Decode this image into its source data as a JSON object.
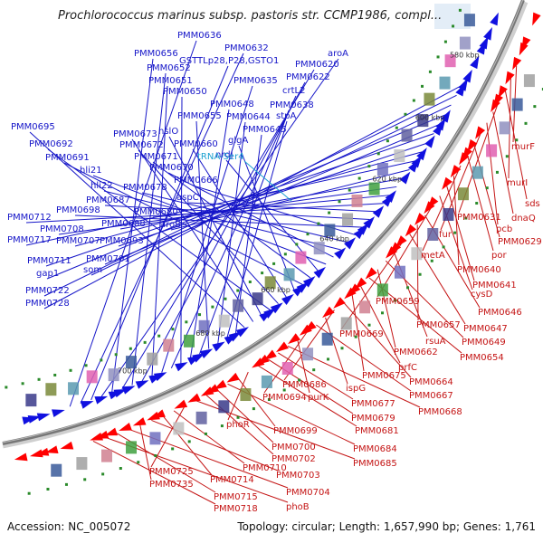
{
  "title": "Prochlorococcus marinus subsp. pastoris str. CCMP1986, compl...",
  "footer": {
    "accession": "Accession: NC_005072",
    "summary": "Topology: circular; Length: 1,657,990 bp; Genes: 1,761"
  },
  "colors": {
    "forward_strand": "#1010e0",
    "reverse_strand": "#ff0000",
    "blue_label": "#1515c8",
    "red_label": "#c41414",
    "trna_label": "#1aa0d0",
    "backbone": "#888888"
  },
  "kbp_markers": [
    "580 kbp",
    "600 kbp",
    "620 kbp",
    "640 kbp",
    "660 kbp",
    "680 kbp",
    "700 kbp"
  ],
  "labels_forward": [
    "PMM0636",
    "PMM0632",
    "GSTTLp28,P28,GSTO1",
    "aroA",
    "PMM0656",
    "PMM0620",
    "PMM0652",
    "PMM0622",
    "PMM0651",
    "PMM0635",
    "crtL2",
    "PMM0650",
    "PMM0648",
    "PMM0638",
    "PMM0655",
    "PMM0644",
    "stpA",
    "PMM0645",
    "PMM0695",
    "PMM0673",
    "hslO",
    "PMM0692",
    "PMM0672",
    "PMM0660",
    "glgA",
    "PMM0691",
    "PMM0671",
    "nrdJ",
    "hli21",
    "PMM0670",
    "hli22",
    "PMM0678",
    "PMM0666",
    "PMM0698",
    "PMM0687",
    "aspC",
    "PMM0712",
    "PMM0680",
    "PMM0708",
    "PMM0688",
    "aroB",
    "PMM0717",
    "PMM0707",
    "PMM0693",
    "PMM0711",
    "PMM0701",
    "gap1",
    "som",
    "PMM0722",
    "PMM0728"
  ],
  "labels_trna": [
    "tRNA-Ser4"
  ],
  "labels_reverse": [
    "murF",
    "murI",
    "sds",
    "PMM0631",
    "dnaQ",
    "pcb",
    "fur",
    "PMM0629",
    "por",
    "metA",
    "PMM0640",
    "PMM0641",
    "cysD",
    "PMM0659",
    "PMM0646",
    "PMM0657",
    "PMM0647",
    "PMM0669",
    "rsuA",
    "PMM0649",
    "PMM0662",
    "PMM0654",
    "prfC",
    "PMM0675",
    "PMM0664",
    "PMM0686",
    "ispG",
    "PMM0667",
    "PMM0694",
    "purK",
    "PMM0668",
    "PMM0677",
    "PMM0679",
    "PMM0681",
    "phoR",
    "PMM0699",
    "PMM0684",
    "PMM0700",
    "PMM0702",
    "PMM0685",
    "PMM0725",
    "PMM0710",
    "PMM0714",
    "PMM0703",
    "PMM0735",
    "PMM0704",
    "PMM0715",
    "phoB",
    "PMM0718"
  ]
}
